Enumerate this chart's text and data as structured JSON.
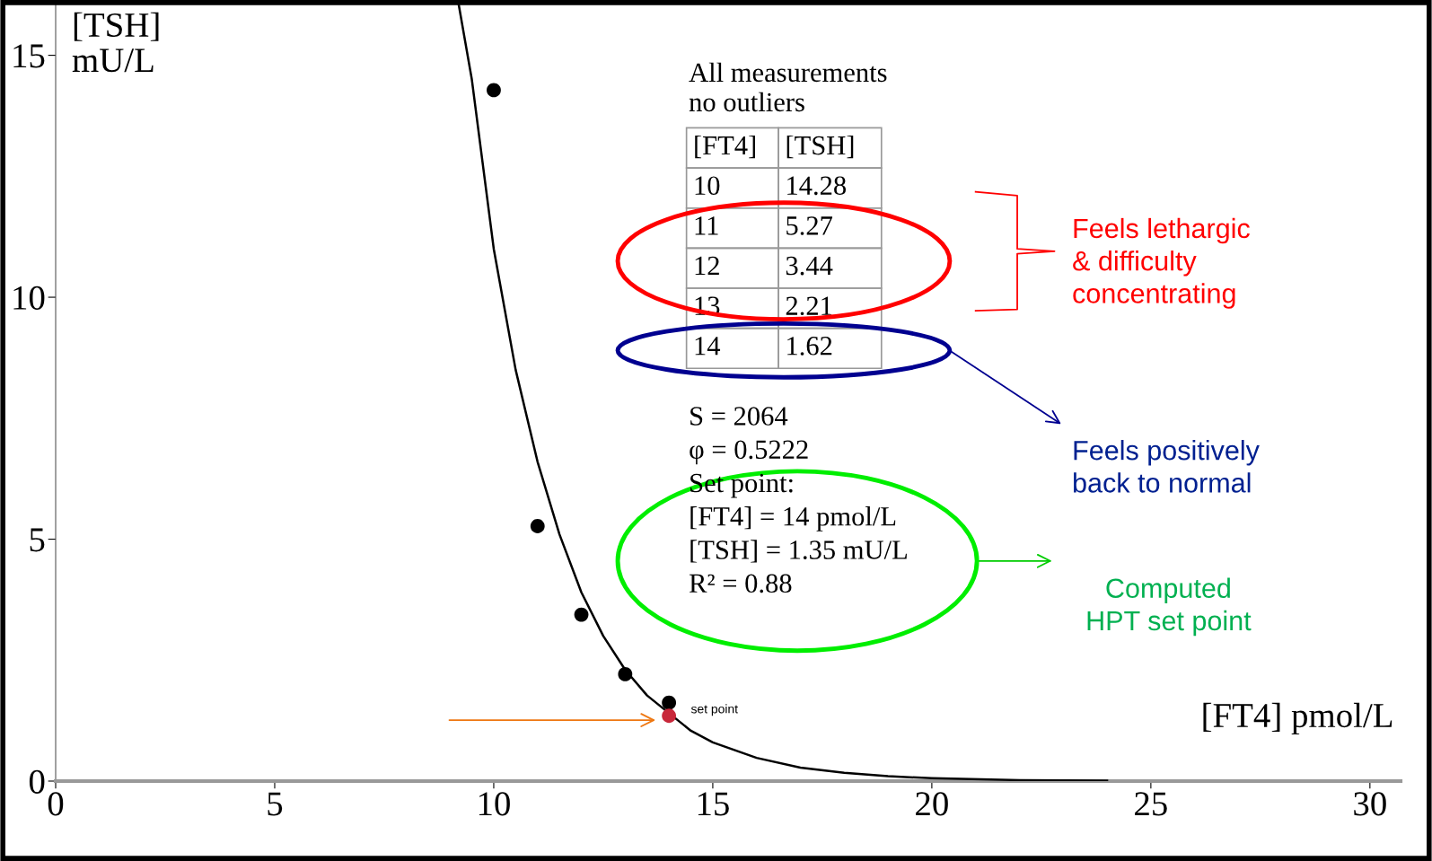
{
  "chart_data": {
    "type": "scatter",
    "xlabel": "[FT4] pmol/L",
    "ylabel": "[TSH]\nmU/L",
    "xlim": [
      0,
      30.7
    ],
    "ylim": [
      0,
      16.05
    ],
    "xticks": [
      0,
      5,
      10,
      15,
      20,
      25,
      30
    ],
    "yticks": [
      0,
      5,
      10,
      15
    ],
    "grid": false,
    "legend": false,
    "series": [
      {
        "type": "scatter",
        "color": "#000000",
        "marker": "circle",
        "x": [
          10,
          11,
          12,
          13,
          14
        ],
        "values": [
          14.28,
          5.27,
          3.44,
          2.21,
          1.62
        ]
      },
      {
        "type": "line",
        "color": "#000000",
        "line_style": "solid",
        "x": [
          9.2,
          9.5,
          10,
          10.5,
          11,
          11.5,
          12,
          12.5,
          13,
          13.5,
          14.5,
          15,
          16,
          17,
          18,
          19,
          20,
          22,
          24
        ],
        "values": [
          16.05,
          14.5,
          11.0,
          8.5,
          6.6,
          5.1,
          3.9,
          3.0,
          2.3,
          1.77,
          1.04,
          0.8,
          0.48,
          0.28,
          0.17,
          0.1,
          0.06,
          0.02,
          0.01
        ]
      },
      {
        "type": "scatter",
        "name": "set point",
        "color": "#c8283a",
        "marker": "circle",
        "x": [
          14
        ],
        "values": [
          1.35
        ]
      }
    ],
    "annotations": [
      "All measurements\nno outliers",
      "[FT4]",
      "[TSH]",
      "10",
      "14.28",
      "11",
      "5.27",
      "12",
      "3.44",
      "13",
      "2.21",
      "14",
      "1.62",
      "S = 2064\nφ = 0.5222\nSet point:\n[FT4] = 14 pmol/L\n[TSH] = 1.35 mU/L\nR² = 0.88",
      "Feels lethargic\n& difficulty\nconcentrating",
      "Feels positively\nback to normal",
      "Computed\nHPT set point"
    ]
  }
}
